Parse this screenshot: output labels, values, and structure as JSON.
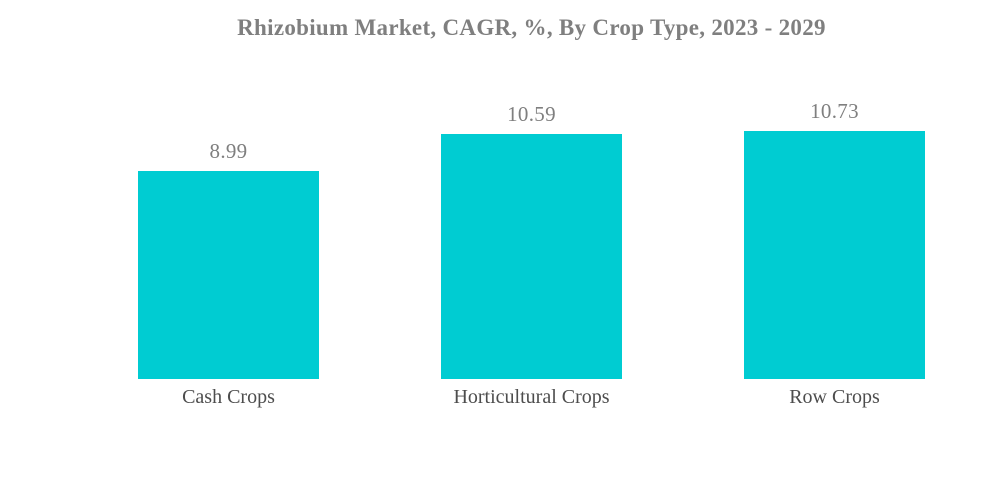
{
  "chart_data": {
    "type": "bar",
    "title": "Rhizobium Market, CAGR, %, By Crop Type, 2023 - 2029",
    "categories": [
      "Cash Crops",
      "Horticultural Crops",
      "Row Crops"
    ],
    "values": [
      8.99,
      10.59,
      10.73
    ],
    "value_labels": [
      "8.99",
      "10.59",
      "10.73"
    ],
    "xlabel": "",
    "ylabel": "",
    "ylim": [
      0,
      12
    ],
    "grid": false,
    "legend": "none",
    "axes_visible": false,
    "background_color": "#FFFFFF",
    "bar_color": "#00CCD2",
    "title_color": "#7F7F7F",
    "value_label_color": "#7F7F7F",
    "category_label_color": "#4D4D4D"
  }
}
